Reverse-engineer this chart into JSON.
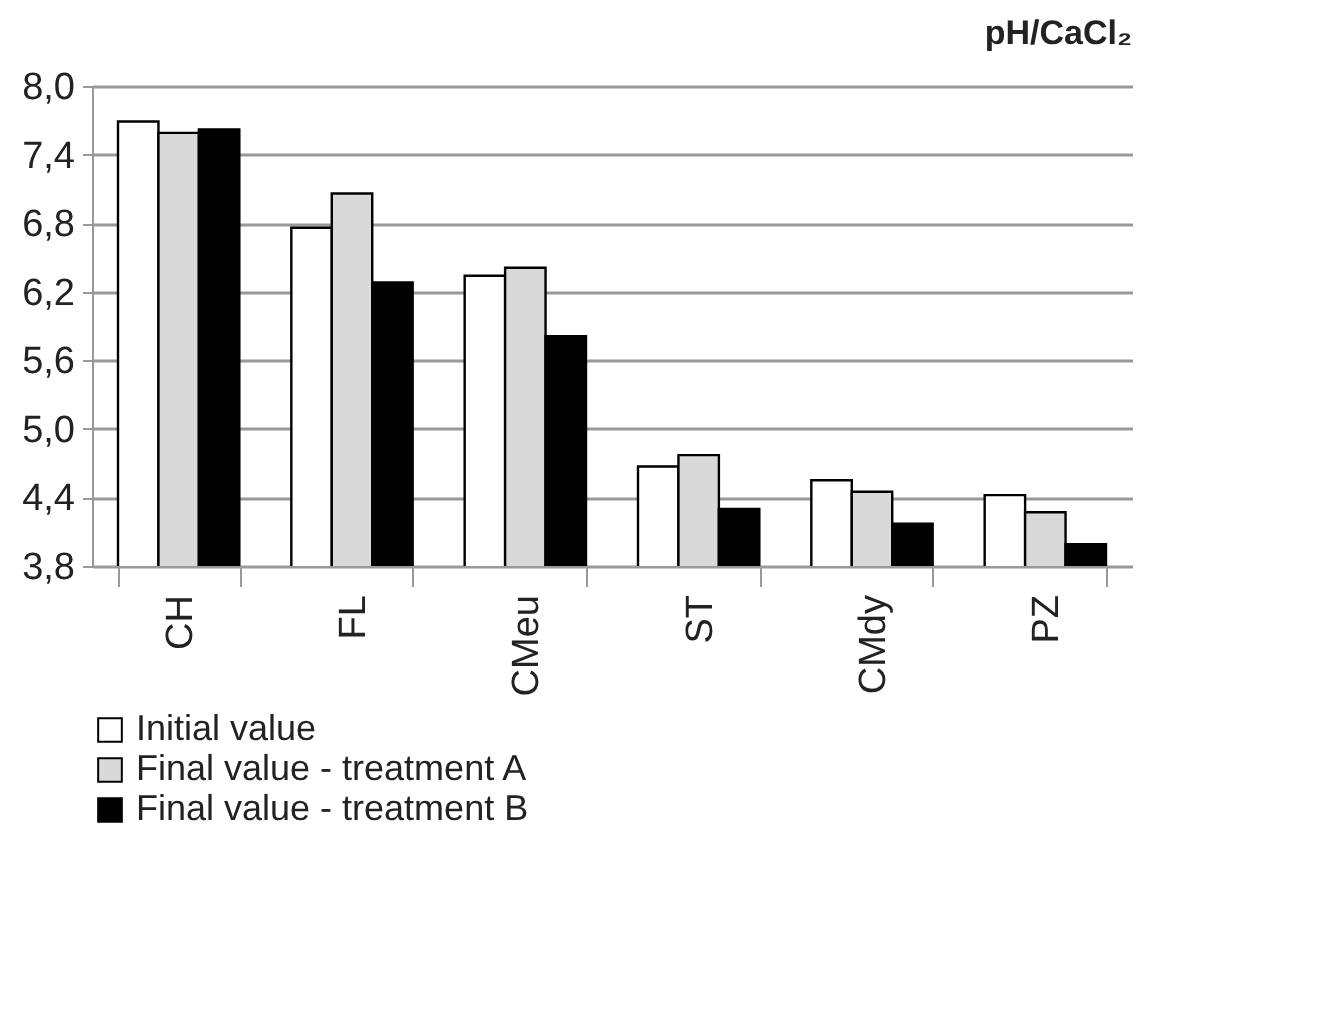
{
  "chart_data": {
    "type": "bar",
    "title": "pH/CaCl₂",
    "categories": [
      "CH",
      "FL",
      "CMeu",
      "ST",
      "CMdy",
      "PZ"
    ],
    "series": [
      {
        "name": "Initial value",
        "color": "#ffffff",
        "values": [
          7.69,
          6.76,
          6.34,
          4.67,
          4.55,
          4.42
        ]
      },
      {
        "name": "Final value - treatment A",
        "color": "#d9d9d9",
        "values": [
          7.59,
          7.06,
          6.41,
          4.77,
          4.45,
          4.27
        ]
      },
      {
        "name": "Final value - treatment B",
        "color": "#000000",
        "values": [
          7.62,
          6.28,
          5.81,
          4.3,
          4.17,
          3.99
        ]
      }
    ],
    "ylim": [
      3.8,
      8.0
    ],
    "yticks": [
      {
        "value": 3.8,
        "label": "3,8"
      },
      {
        "value": 4.4,
        "label": "4,4"
      },
      {
        "value": 5.0,
        "label": "5,0"
      },
      {
        "value": 5.6,
        "label": "5,6"
      },
      {
        "value": 6.2,
        "label": "6,2"
      },
      {
        "value": 6.8,
        "label": "6,8"
      },
      {
        "value": 7.4,
        "label": "7,4"
      },
      {
        "value": 8.0,
        "label": "8,0"
      }
    ],
    "grid": "y",
    "legend": "bottom"
  }
}
